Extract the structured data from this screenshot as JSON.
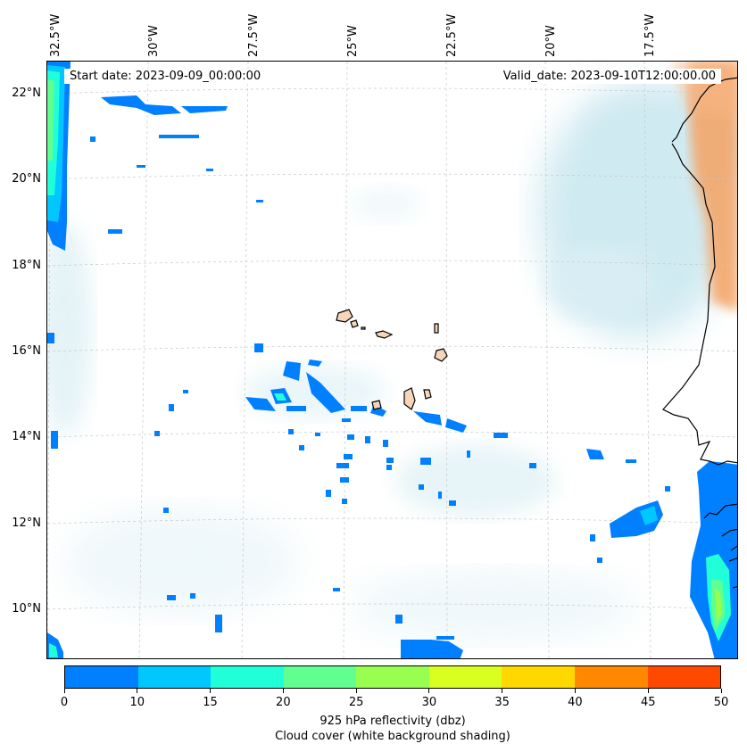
{
  "map": {
    "start_date": "Start date: 2023-09-09_00:00:00",
    "valid_date": "Valid_date: 2023-09-10T12:00:00.00",
    "lon_labels": [
      "32.5°W",
      "30°W",
      "27.5°W",
      "25°W",
      "22.5°W",
      "20°W",
      "17.5°W"
    ],
    "lat_labels": [
      "22°N",
      "20°N",
      "18°N",
      "16°N",
      "14°N",
      "12°N",
      "10°N"
    ]
  },
  "colorbar": {
    "ticks": [
      "0",
      "10",
      "15",
      "20",
      "25",
      "30",
      "35",
      "40",
      "45",
      "50"
    ],
    "colors": [
      "#0080ff",
      "#00c8ff",
      "#20ffd8",
      "#60ff90",
      "#98ff50",
      "#d8ff20",
      "#ffd800",
      "#ff8800",
      "#ff4800"
    ],
    "label_line1": "925 hPa reflectivity (dbz)",
    "label_line2": "Cloud cover (white background shading)"
  },
  "colors": {
    "reflectivity_low": "#0080ff",
    "reflectivity_mid": "#00c8ff",
    "reflectivity_high": "#60ff90",
    "cloud": "#a9d9e6",
    "land_sahara": "#f4a262",
    "islands": "#f6d5b8"
  }
}
